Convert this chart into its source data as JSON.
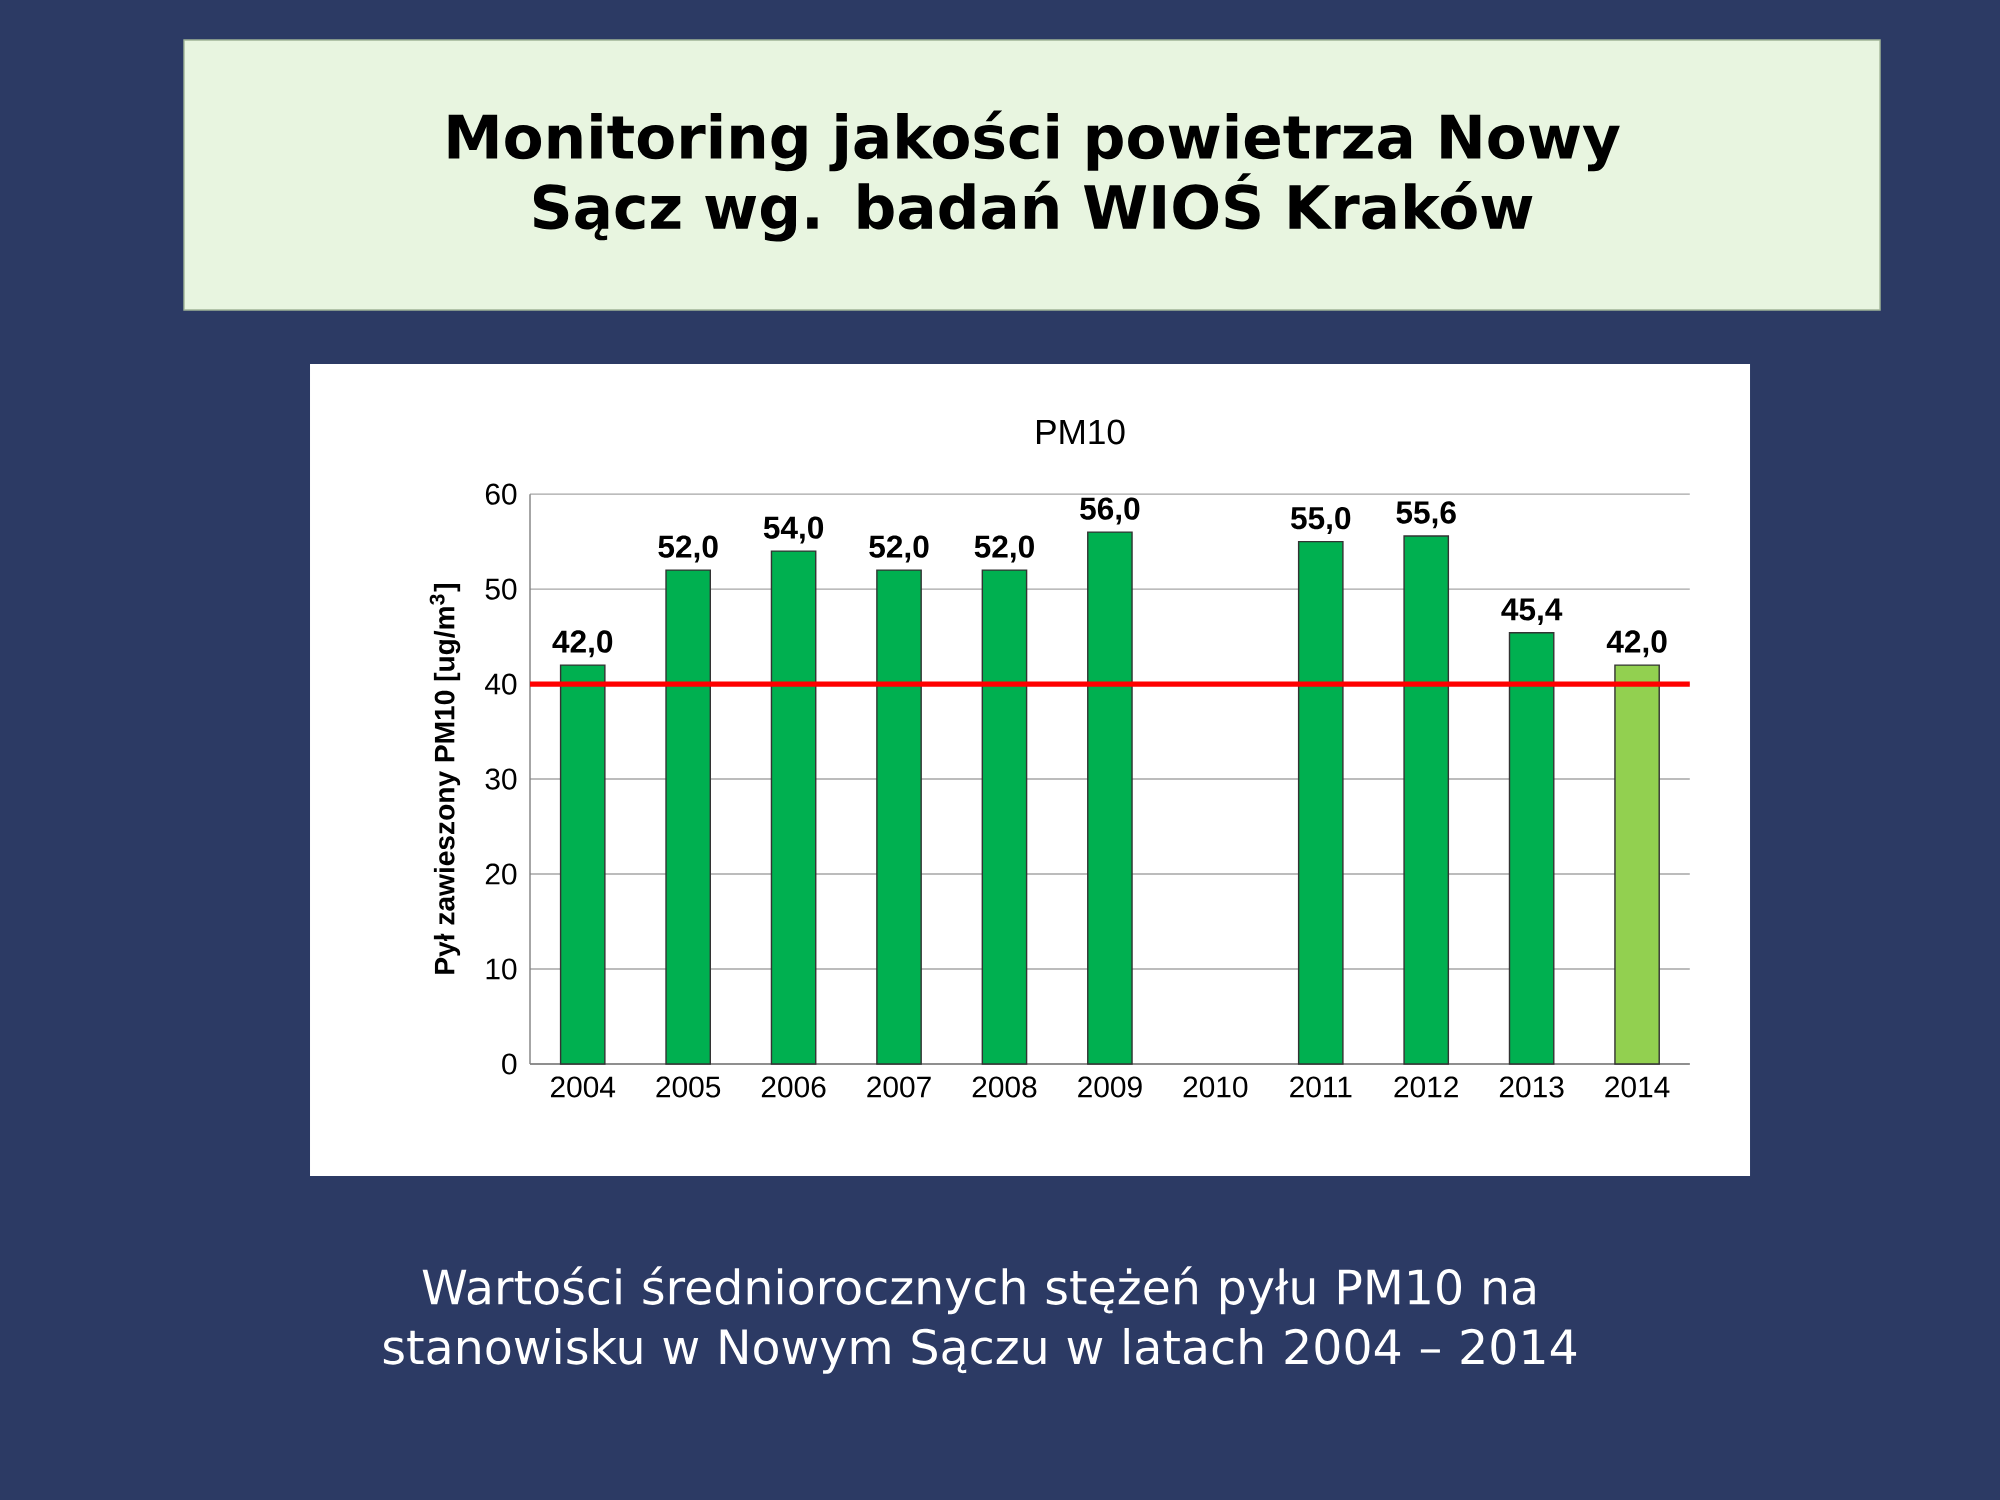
{
  "chart_data": {
    "type": "bar",
    "title": "Monitoring jakości powietrza Nowy Sącz wg. badań WIOŚ Kraków",
    "subtitle": "PM10",
    "ylabel": "Pył zawieszony PM10 [ug/m$^{3}$]",
    "categories": [
      "2004",
      "2005",
      "2006",
      "2007",
      "2008",
      "2009",
      "2010",
      "2011",
      "2012",
      "2013",
      "2014"
    ],
    "values": [
      42.0,
      52.0,
      54.0,
      52.0,
      52.0,
      56.0,
      null,
      55.0,
      55.6,
      45.4,
      42.0
    ],
    "value_labels": [
      "42,0",
      "52,0",
      "54,0",
      "52,0",
      "52,0",
      "56,0",
      null,
      "55,0",
      "55,6",
      "45,4",
      "42,0"
    ],
    "colors": [
      "#00b050",
      "#00b050",
      "#00b050",
      "#00b050",
      "#00b050",
      "#00b050",
      "#00b050",
      "#00b050",
      "#00b050",
      "#00b050",
      "#92d050"
    ],
    "ylim": [
      0,
      60
    ],
    "yticks": [
      0,
      10,
      20,
      30,
      40,
      50,
      60
    ],
    "grid": "y",
    "ref_lines": [
      {
        "axis": "y",
        "value": 40,
        "color": "#ff0000"
      }
    ],
    "annotations": [
      "Wartości średniorocznych stężeń pyłu PM10 na stanowisku w Nowym Sączu w latach 2004 – 2014"
    ]
  }
}
